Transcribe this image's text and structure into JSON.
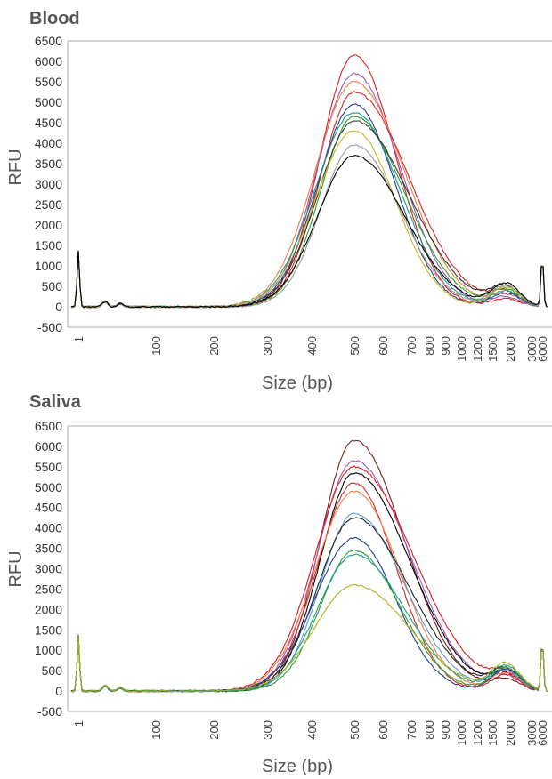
{
  "chart_data": [
    {
      "type": "line",
      "title": "Blood",
      "xlabel": "Size (bp)",
      "ylabel": "RFU",
      "ylim": [
        -500,
        6500
      ],
      "yticks": [
        -500,
        0,
        500,
        1000,
        1500,
        2000,
        2500,
        3000,
        3500,
        4000,
        4500,
        5000,
        5500,
        6000,
        6500
      ],
      "xticks": [
        "1",
        "100",
        "200",
        "300",
        "400",
        "500",
        "600",
        "700",
        "800",
        "900",
        "1000",
        "1200",
        "1500",
        "2000",
        "3000",
        "6000"
      ],
      "grid": false,
      "series": [
        {
          "color": "#e31a1c",
          "peak_x": "500",
          "peak_y": 6150
        },
        {
          "color": "#9b59b6",
          "peak_x": "520",
          "peak_y": 5700
        },
        {
          "color": "#f08040",
          "peak_x": "540",
          "peak_y": 5500
        },
        {
          "color": "#d62728",
          "peak_x": "510",
          "peak_y": 5250
        },
        {
          "color": "#1f3f8f",
          "peak_x": "520",
          "peak_y": 4950
        },
        {
          "color": "#1a9a8a",
          "peak_x": "530",
          "peak_y": 4750
        },
        {
          "color": "#2ca02c",
          "peak_x": "510",
          "peak_y": 4650
        },
        {
          "color": "#333333",
          "peak_x": "520",
          "peak_y": 4550
        },
        {
          "color": "#c8b820",
          "peak_x": "490",
          "peak_y": 4300
        },
        {
          "color": "#999999",
          "peak_x": "510",
          "peak_y": 3950
        },
        {
          "color": "#000000",
          "peak_x": "520",
          "peak_y": 3700
        }
      ]
    },
    {
      "type": "line",
      "title": "Saliva",
      "xlabel": "Size (bp)",
      "ylabel": "RFU",
      "ylim": [
        -500,
        6500
      ],
      "yticks": [
        -500,
        0,
        500,
        1000,
        1500,
        2000,
        2500,
        3000,
        3500,
        4000,
        4500,
        5000,
        5500,
        6000,
        6500
      ],
      "xticks": [
        "1",
        "100",
        "200",
        "300",
        "400",
        "500",
        "600",
        "700",
        "800",
        "900",
        "1000",
        "1200",
        "1500",
        "2000",
        "3000",
        "6000"
      ],
      "grid": false,
      "series": [
        {
          "color": "#7a1f1f",
          "peak_x": "500",
          "peak_y": 6150
        },
        {
          "color": "#9b59b6",
          "peak_x": "510",
          "peak_y": 5650
        },
        {
          "color": "#e31a1c",
          "peak_x": "560",
          "peak_y": 5500
        },
        {
          "color": "#000000",
          "peak_x": "500",
          "peak_y": 5350
        },
        {
          "color": "#d62728",
          "peak_x": "520",
          "peak_y": 5100
        },
        {
          "color": "#f08040",
          "peak_x": "480",
          "peak_y": 4900
        },
        {
          "color": "#5b9bd5",
          "peak_x": "530",
          "peak_y": 4350
        },
        {
          "color": "#222222",
          "peak_x": "560",
          "peak_y": 4250
        },
        {
          "color": "#1f3f8f",
          "peak_x": "500",
          "peak_y": 3750
        },
        {
          "color": "#2ca02c",
          "peak_x": "520",
          "peak_y": 3450
        },
        {
          "color": "#1a9a8a",
          "peak_x": "530",
          "peak_y": 3350
        },
        {
          "color": "#b0b020",
          "peak_x": "460",
          "peak_y": 2600
        }
      ]
    }
  ]
}
